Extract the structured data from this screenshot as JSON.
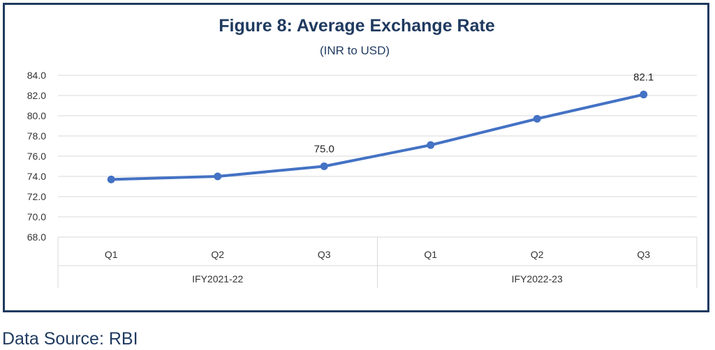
{
  "chart_data": {
    "type": "line",
    "title": "Figure 8: Average Exchange Rate",
    "subtitle": "(INR to USD)",
    "x": [
      "Q1",
      "Q2",
      "Q3",
      "Q1",
      "Q2",
      "Q3"
    ],
    "groups": [
      {
        "label": "IFY2021-22",
        "start": 0,
        "end": 2
      },
      {
        "label": "IFY2022-23",
        "start": 3,
        "end": 5
      }
    ],
    "series": [
      {
        "values": [
          73.7,
          74.0,
          75.0,
          77.1,
          79.7,
          82.1
        ]
      }
    ],
    "data_labels": [
      null,
      null,
      "75.0",
      null,
      null,
      "82.1"
    ],
    "yticks": [
      "68.0",
      "70.0",
      "72.0",
      "74.0",
      "76.0",
      "78.0",
      "80.0",
      "82.0",
      "84.0"
    ],
    "ylim": [
      68,
      84
    ],
    "grid": true,
    "line_color": "#4472c4",
    "title_color": "#1f3a5f"
  },
  "footer": {
    "source": "Data Source: RBI"
  }
}
